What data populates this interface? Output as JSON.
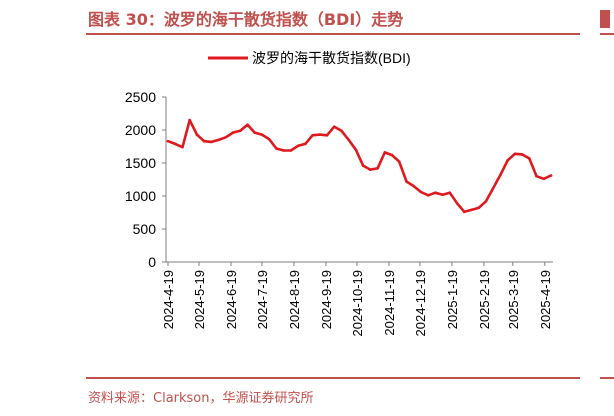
{
  "figure_title": "图表 30：波罗的海干散货指数（BDI）走势",
  "source_text": "资料来源：Clarkson，华源证券研究所",
  "colors": {
    "accent": "#c0504d",
    "series": "#e0191f",
    "axis": "#7f7f7f",
    "text": "#000000"
  },
  "chart_data": {
    "type": "line",
    "title": "",
    "xlabel": "",
    "ylabel": "",
    "legend_position": "top-center",
    "grid": false,
    "ylim": [
      0,
      2500
    ],
    "yticks": [
      "0",
      "500",
      "1000",
      "1500",
      "2000",
      "2500"
    ],
    "xtick_labels": [
      "2024-4-19",
      "2024-5-19",
      "2024-6-19",
      "2024-7-19",
      "2024-8-19",
      "2024-9-19",
      "2024-10-19",
      "2024-11-19",
      "2024-12-19",
      "2025-1-19",
      "2025-2-19",
      "2025-3-19",
      "2025-4-19"
    ],
    "x": [
      "2024-4-19",
      "2024-4-26",
      "2024-5-3",
      "2024-5-10",
      "2024-5-17",
      "2024-5-24",
      "2024-5-31",
      "2024-6-7",
      "2024-6-14",
      "2024-6-21",
      "2024-6-28",
      "2024-7-5",
      "2024-7-12",
      "2024-7-19",
      "2024-7-26",
      "2024-8-2",
      "2024-8-9",
      "2024-8-16",
      "2024-8-23",
      "2024-8-30",
      "2024-9-6",
      "2024-9-13",
      "2024-9-20",
      "2024-9-27",
      "2024-10-4",
      "2024-10-11",
      "2024-10-18",
      "2024-10-25",
      "2024-11-1",
      "2024-11-8",
      "2024-11-15",
      "2024-11-22",
      "2024-11-29",
      "2024-12-6",
      "2024-12-13",
      "2024-12-20",
      "2024-12-27",
      "2025-1-3",
      "2025-1-10",
      "2025-1-17",
      "2025-1-24",
      "2025-1-31",
      "2025-2-7",
      "2025-2-14",
      "2025-2-21",
      "2025-2-28",
      "2025-3-7",
      "2025-3-14",
      "2025-3-21",
      "2025-3-28",
      "2025-4-4",
      "2025-4-11",
      "2025-4-18",
      "2025-4-25"
    ],
    "series": [
      {
        "name": "波罗的海干散货指数(BDI)",
        "values": [
          1830,
          1790,
          1740,
          2150,
          1930,
          1830,
          1820,
          1850,
          1890,
          1960,
          1990,
          2080,
          1960,
          1930,
          1860,
          1720,
          1690,
          1690,
          1760,
          1790,
          1920,
          1930,
          1920,
          2050,
          1990,
          1850,
          1700,
          1460,
          1400,
          1420,
          1660,
          1620,
          1520,
          1220,
          1150,
          1060,
          1010,
          1050,
          1020,
          1050,
          890,
          760,
          790,
          820,
          920,
          1120,
          1320,
          1540,
          1640,
          1630,
          1570,
          1300,
          1260,
          1310
        ]
      }
    ]
  }
}
